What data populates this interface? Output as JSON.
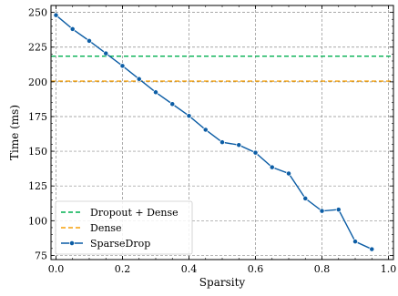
{
  "chart_data": {
    "type": "line",
    "xlabel": "Sparsity",
    "ylabel": "Time (ms)",
    "xlim": [
      -0.015,
      1.015
    ],
    "ylim": [
      72,
      255
    ],
    "grid": true,
    "legend_position": "bottom-left",
    "xticks": [
      0.0,
      0.2,
      0.4,
      0.6,
      0.8,
      1.0
    ],
    "xtick_labels": [
      "0.0",
      "0.2",
      "0.4",
      "0.6",
      "0.8",
      "1.0"
    ],
    "yticks": [
      75,
      100,
      125,
      150,
      175,
      200,
      225,
      250
    ],
    "ytick_labels": [
      "75",
      "100",
      "125",
      "150",
      "175",
      "200",
      "225",
      "250"
    ],
    "series": [
      {
        "name": "Dropout + Dense",
        "kind": "hline",
        "y": 218.5,
        "color": "#00b050",
        "style": "dashed"
      },
      {
        "name": "Dense",
        "kind": "hline",
        "y": 200.5,
        "color": "#f5a00a",
        "style": "dashed"
      },
      {
        "name": "SparseDrop",
        "kind": "line",
        "color": "#0c5da5",
        "marker": "circle",
        "x": [
          0.0,
          0.05,
          0.1,
          0.15,
          0.2,
          0.25,
          0.3,
          0.35,
          0.4,
          0.45,
          0.5,
          0.55,
          0.6,
          0.65,
          0.7,
          0.75,
          0.8,
          0.85,
          0.9,
          0.95
        ],
        "y": [
          248,
          238,
          229.5,
          220.5,
          211.5,
          202,
          192.5,
          184,
          175.5,
          165.5,
          156.5,
          154.5,
          149,
          138.5,
          134,
          116,
          107,
          108,
          85,
          79.5
        ]
      }
    ]
  }
}
